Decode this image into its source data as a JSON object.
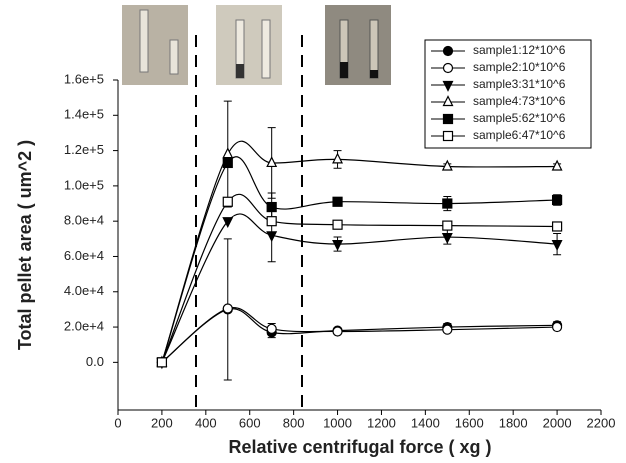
{
  "chart_data": {
    "type": "line",
    "ylabel": "Total pellet area ( um^2 )",
    "xlabel": "Relative centrifugal force ( xg )",
    "x": [
      200,
      500,
      700,
      1000,
      1500,
      2000
    ],
    "xlim": [
      0,
      2200
    ],
    "xticks": [
      0,
      200,
      400,
      600,
      800,
      1000,
      1200,
      1400,
      1600,
      1800,
      2000,
      2200
    ],
    "ylim": [
      -27000,
      160000
    ],
    "yticks": [
      {
        "value": 0,
        "label": "0.0"
      },
      {
        "value": 20000,
        "label": "2.0e+4"
      },
      {
        "value": 40000,
        "label": "4.0e+4"
      },
      {
        "value": 60000,
        "label": "6.0e+4"
      },
      {
        "value": 80000,
        "label": "8.0e+4"
      },
      {
        "value": 100000,
        "label": "1.0e+5"
      },
      {
        "value": 120000,
        "label": "1.2e+5"
      },
      {
        "value": 140000,
        "label": "1.4e+5"
      },
      {
        "value": 160000,
        "label": "1.6e+5"
      }
    ],
    "legend": "top-right",
    "series": [
      {
        "name": "sample1:12*10^6",
        "color": "#000000",
        "marker": "circle",
        "filled": true,
        "values": [
          0,
          30000,
          17000,
          18000,
          20000,
          21000
        ],
        "errors": [
          0,
          40000,
          3000,
          1500,
          2000,
          2000
        ]
      },
      {
        "name": "sample2:10*10^6",
        "color": "#000000",
        "marker": "circle",
        "filled": false,
        "values": [
          0,
          30500,
          19000,
          17500,
          18500,
          20000
        ],
        "errors": [
          0,
          0,
          3000,
          1500,
          1500,
          1500
        ]
      },
      {
        "name": "sample3:31*10^6",
        "color": "#000000",
        "marker": "triangle-down",
        "filled": true,
        "values": [
          0,
          80000,
          72000,
          67000,
          71000,
          67000
        ],
        "errors": [
          0,
          0,
          15000,
          4000,
          4000,
          6000
        ]
      },
      {
        "name": "sample4:73*10^6",
        "color": "#000000",
        "marker": "triangle-up",
        "filled": false,
        "values": [
          0,
          118000,
          113000,
          115000,
          111000,
          111000
        ],
        "errors": [
          0,
          30000,
          20000,
          5000,
          1500,
          1500
        ]
      },
      {
        "name": "sample5:62*10^6",
        "color": "#000000",
        "marker": "square",
        "filled": true,
        "values": [
          0,
          113000,
          88000,
          91000,
          90000,
          92000
        ],
        "errors": [
          0,
          0,
          8000,
          2000,
          4000,
          3000
        ]
      },
      {
        "name": "sample6:47*10^6",
        "color": "#000000",
        "marker": "square",
        "filled": false,
        "values": [
          0,
          91000,
          80000,
          78000,
          77500,
          77000
        ],
        "errors": [
          0,
          0,
          0,
          0,
          0,
          0
        ]
      }
    ]
  }
}
